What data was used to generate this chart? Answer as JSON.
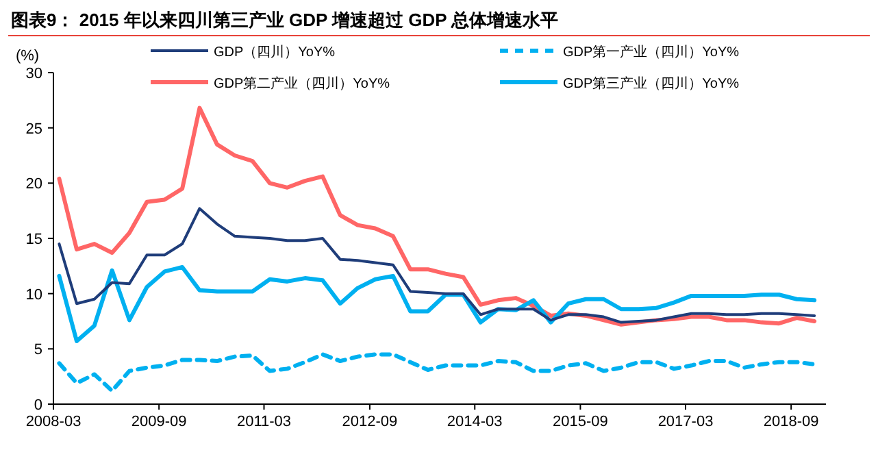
{
  "chart_data": {
    "type": "line",
    "title": "图表9：  2015 年以来四川第三产业 GDP 增速超过 GDP 总体增速水平",
    "ylabel": "(%)",
    "x": [
      "2008-03-31",
      "2008-06-30",
      "2008-09-30",
      "2008-12-31",
      "2009-03-31",
      "2009-06-30",
      "2009-09-30",
      "2009-12-31",
      "2010-03-31",
      "2010-06-30",
      "2010-09-30",
      "2010-12-31",
      "2011-03-31",
      "2011-06-30",
      "2011-09-30",
      "2011-12-31",
      "2012-03-31",
      "2012-06-30",
      "2012-09-30",
      "2012-12-31",
      "2013-03-31",
      "2013-06-30",
      "2013-09-30",
      "2013-12-31",
      "2014-03-31",
      "2014-06-30",
      "2014-09-30",
      "2014-12-31",
      "2015-03-31",
      "2015-06-30",
      "2015-09-30",
      "2015-12-31",
      "2016-03-31",
      "2016-06-30",
      "2016-09-30",
      "2016-12-31",
      "2017-03-31",
      "2017-06-30",
      "2017-09-30",
      "2017-12-31",
      "2018-03-31",
      "2018-06-30",
      "2018-09-30",
      "2018-12-31"
    ],
    "series": [
      {
        "name": "GDP（四川）YoY%",
        "color": "#1f3d7a",
        "line_style": "solid",
        "values": [
          14.5,
          9.1,
          9.5,
          11.0,
          10.9,
          13.5,
          13.5,
          14.5,
          17.7,
          16.3,
          15.2,
          15.1,
          15.0,
          14.8,
          14.8,
          15.0,
          13.1,
          13.0,
          12.8,
          12.6,
          10.2,
          10.1,
          10.0,
          10.0,
          8.1,
          8.6,
          8.6,
          8.6,
          7.6,
          8.1,
          8.1,
          7.9,
          7.4,
          7.5,
          7.6,
          7.9,
          8.2,
          8.2,
          8.1,
          8.1,
          8.2,
          8.2,
          8.1,
          8.0
        ]
      },
      {
        "name": "GDP第一产业（四川）YoY%",
        "color": "#00b0f0",
        "line_style": "dashed",
        "values": [
          3.7,
          1.9,
          2.7,
          1.2,
          3.0,
          3.3,
          3.5,
          4.0,
          4.0,
          3.9,
          4.3,
          4.4,
          3.0,
          3.2,
          3.8,
          4.5,
          3.9,
          4.3,
          4.5,
          4.5,
          3.8,
          3.1,
          3.5,
          3.5,
          3.5,
          3.9,
          3.8,
          3.0,
          3.0,
          3.5,
          3.7,
          3.0,
          3.3,
          3.8,
          3.8,
          3.2,
          3.5,
          3.9,
          3.9,
          3.3,
          3.6,
          3.8,
          3.8,
          3.6
        ]
      },
      {
        "name": "GDP第二产业（四川）YoY%",
        "color": "#ff6666",
        "line_style": "solid",
        "values": [
          20.4,
          14.0,
          14.5,
          13.7,
          15.5,
          18.3,
          18.5,
          19.5,
          26.8,
          23.5,
          22.5,
          22.0,
          20.0,
          19.6,
          20.2,
          20.6,
          17.1,
          16.2,
          15.9,
          15.2,
          12.2,
          12.2,
          11.8,
          11.5,
          9.0,
          9.4,
          9.6,
          8.9,
          8.0,
          8.2,
          8.0,
          7.6,
          7.2,
          7.4,
          7.6,
          7.7,
          7.9,
          7.9,
          7.6,
          7.6,
          7.4,
          7.3,
          7.8,
          7.5
        ]
      },
      {
        "name": "GDP第三产业（四川）YoY%",
        "color": "#00b0f0",
        "line_style": "solid",
        "values": [
          11.6,
          5.7,
          7.1,
          12.1,
          7.6,
          10.6,
          12.0,
          12.4,
          10.3,
          10.2,
          10.2,
          10.2,
          11.3,
          11.1,
          11.4,
          11.2,
          9.1,
          10.5,
          11.3,
          11.6,
          8.4,
          8.4,
          9.9,
          9.9,
          7.4,
          8.6,
          8.5,
          9.4,
          7.4,
          9.1,
          9.5,
          9.5,
          8.6,
          8.6,
          8.7,
          9.2,
          9.8,
          9.8,
          9.8,
          9.8,
          9.9,
          9.9,
          9.5,
          9.4
        ]
      }
    ],
    "xlim": [
      "2008-03",
      "2019-03"
    ],
    "xticks": [
      {
        "value": "2008-03",
        "label": "2008-03"
      },
      {
        "value": "2009-09",
        "label": "2009-09"
      },
      {
        "value": "2011-03",
        "label": "2011-03"
      },
      {
        "value": "2012-09",
        "label": "2012-09"
      },
      {
        "value": "2014-03",
        "label": "2014-03"
      },
      {
        "value": "2015-09",
        "label": "2015-09"
      },
      {
        "value": "2017-03",
        "label": "2017-03"
      },
      {
        "value": "2018-09",
        "label": "2018-09"
      }
    ],
    "ylim": [
      0,
      30
    ],
    "yticks": [
      0,
      5,
      10,
      15,
      20,
      25,
      30
    ],
    "legend": "top",
    "grid": false,
    "marker": "none"
  }
}
